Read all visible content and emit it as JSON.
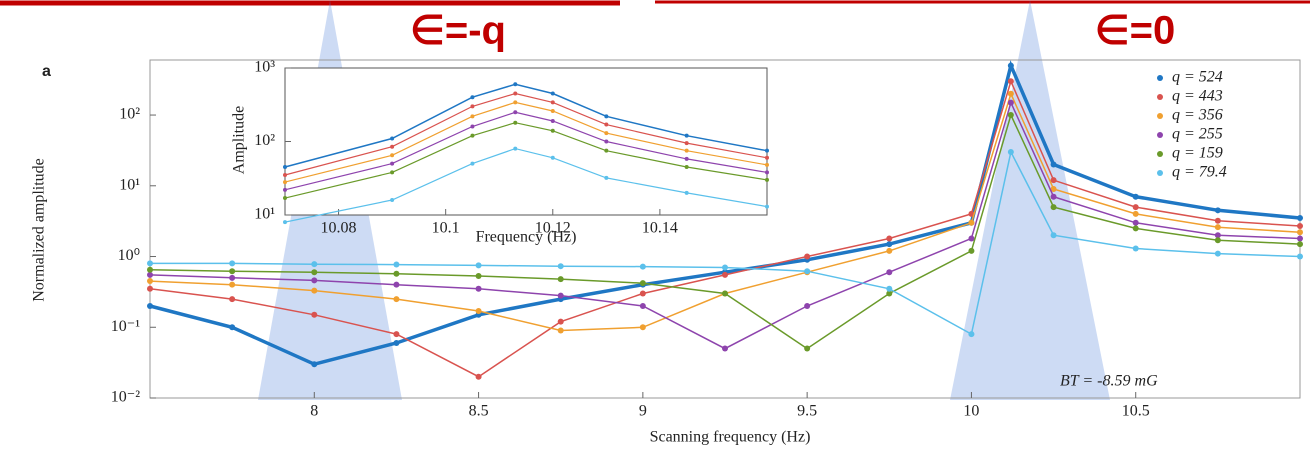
{
  "chart_data": [
    {
      "type": "line",
      "panel_label": "a",
      "xlabel": "Scanning frequency (Hz)",
      "ylabel": "Normalized amplitude",
      "log_y": true,
      "xlim": [
        7.5,
        11
      ],
      "ylim": [
        0.01,
        600
      ],
      "xticks": [
        8,
        8.5,
        9,
        9.5,
        10,
        10.5
      ],
      "yticks": [
        {
          "value": 0.01,
          "label": "10⁻²"
        },
        {
          "value": 0.1,
          "label": "10⁻¹"
        },
        {
          "value": 1,
          "label": "10⁰"
        },
        {
          "value": 10,
          "label": "10¹"
        },
        {
          "value": 100,
          "label": "10²"
        }
      ],
      "annotations": [
        "∈=-q",
        "∈=0",
        "BT = -8.59 mG"
      ],
      "x": [
        7.5,
        7.75,
        8,
        8.25,
        8.5,
        8.75,
        9,
        9.25,
        9.5,
        9.75,
        10,
        10.12,
        10.25,
        10.5,
        10.75,
        11
      ],
      "series": [
        {
          "name": "q = 524",
          "color": "#1f77c4",
          "values": [
            0.2,
            0.1,
            0.03,
            0.06,
            0.15,
            0.25,
            0.4,
            0.6,
            0.9,
            1.5,
            3,
            500,
            20,
            7,
            4.5,
            3.5
          ]
        },
        {
          "name": "q = 443",
          "color": "#d9534f",
          "values": [
            0.35,
            0.25,
            0.15,
            0.08,
            0.02,
            0.12,
            0.3,
            0.55,
            1.0,
            1.8,
            4,
            300,
            12,
            5,
            3.2,
            2.7
          ]
        },
        {
          "name": "q = 356",
          "color": "#f0a030",
          "values": [
            0.45,
            0.4,
            0.33,
            0.25,
            0.17,
            0.09,
            0.1,
            0.3,
            0.6,
            1.2,
            3,
            200,
            9,
            4,
            2.6,
            2.2
          ]
        },
        {
          "name": "q = 255",
          "color": "#8e44ad",
          "values": [
            0.55,
            0.5,
            0.46,
            0.4,
            0.35,
            0.28,
            0.2,
            0.05,
            0.2,
            0.6,
            1.8,
            150,
            7,
            3,
            2,
            1.8
          ]
        },
        {
          "name": "q = 159",
          "color": "#6a9a2a",
          "values": [
            0.65,
            0.62,
            0.6,
            0.57,
            0.53,
            0.48,
            0.42,
            0.3,
            0.05,
            0.3,
            1.2,
            100,
            5,
            2.5,
            1.7,
            1.5
          ]
        },
        {
          "name": "q = 79.4",
          "color": "#5bc0eb",
          "values": [
            0.8,
            0.8,
            0.78,
            0.77,
            0.75,
            0.73,
            0.72,
            0.7,
            0.62,
            0.35,
            0.08,
            30,
            2,
            1.3,
            1.1,
            1.0
          ]
        }
      ]
    },
    {
      "type": "line",
      "xlabel": "Frequency (Hz)",
      "ylabel": "Amplitude",
      "log_y": true,
      "xlim": [
        10.07,
        10.16
      ],
      "ylim": [
        10,
        1000
      ],
      "xticks": [
        10.08,
        10.1,
        10.12,
        10.14
      ],
      "yticks": [
        {
          "value": 10,
          "label": "10¹"
        },
        {
          "value": 100,
          "label": "10²"
        },
        {
          "value": 1000,
          "label": "10³"
        }
      ],
      "x": [
        10.07,
        10.09,
        10.105,
        10.113,
        10.12,
        10.13,
        10.145,
        10.16
      ],
      "series": [
        {
          "name": "q = 524",
          "color": "#1f77c4",
          "values": [
            45,
            110,
            400,
            600,
            450,
            220,
            120,
            75
          ]
        },
        {
          "name": "q = 443",
          "color": "#d9534f",
          "values": [
            35,
            85,
            300,
            450,
            340,
            170,
            95,
            60
          ]
        },
        {
          "name": "q = 356",
          "color": "#f0a030",
          "values": [
            28,
            65,
            220,
            340,
            260,
            130,
            75,
            48
          ]
        },
        {
          "name": "q = 255",
          "color": "#8e44ad",
          "values": [
            22,
            50,
            160,
            250,
            190,
            100,
            58,
            38
          ]
        },
        {
          "name": "q = 159",
          "color": "#6a9a2a",
          "values": [
            17,
            38,
            120,
            180,
            140,
            75,
            45,
            30
          ]
        },
        {
          "name": "q = 79.4",
          "color": "#5bc0eb",
          "values": [
            8,
            16,
            50,
            80,
            60,
            32,
            20,
            13
          ]
        }
      ]
    }
  ]
}
